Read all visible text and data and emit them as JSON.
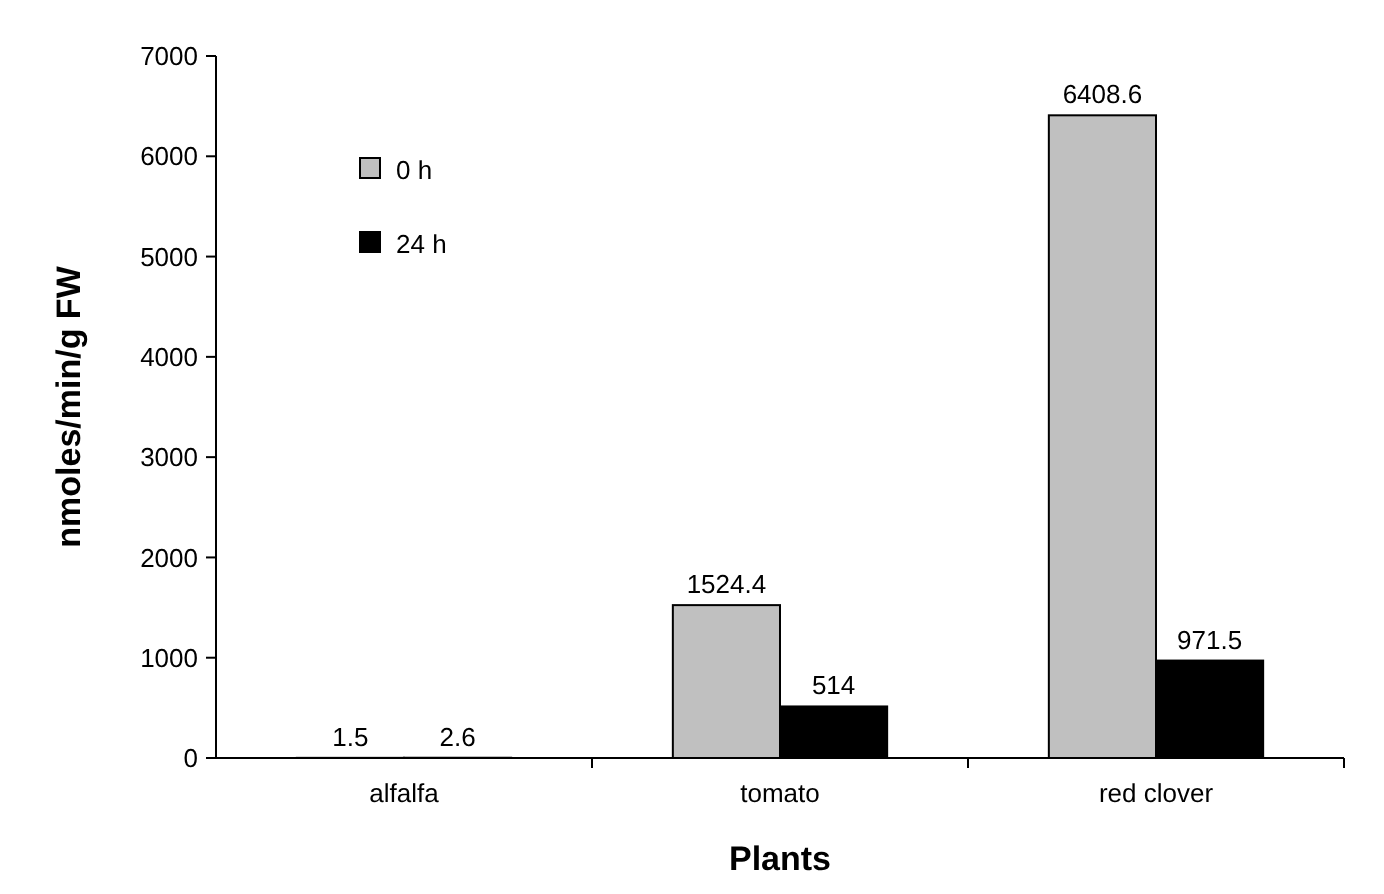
{
  "chart_data": {
    "type": "bar",
    "xlabel": "Plants",
    "ylabel": "nmoles/min/g FW",
    "categories": [
      "alfalfa",
      "tomato",
      "red clover"
    ],
    "series": [
      {
        "name": "0 h",
        "color": "#c0c0c0",
        "values": [
          1.5,
          1524.4,
          6408.6
        ]
      },
      {
        "name": "24 h",
        "color": "#000000",
        "values": [
          2.6,
          514,
          971.5
        ]
      }
    ],
    "ylim": [
      0,
      7000
    ],
    "yticks": [
      0,
      1000,
      2000,
      3000,
      4000,
      5000,
      6000,
      7000
    ],
    "data_labels": true,
    "legend": "top left",
    "grid": false
  }
}
